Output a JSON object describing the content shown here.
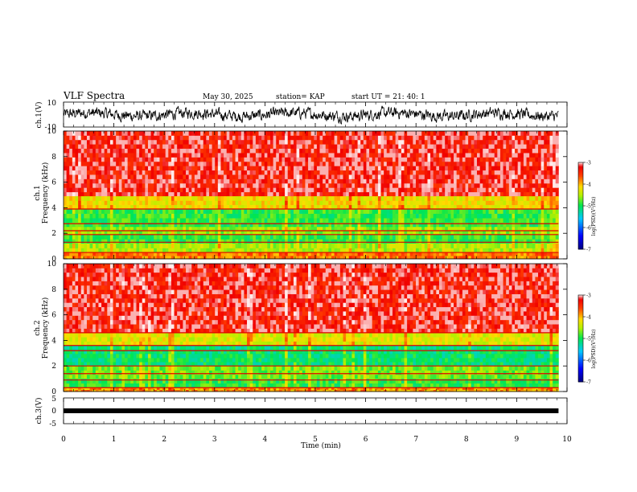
{
  "header": {
    "title": "VLF Spectra",
    "date": "May 30, 2025",
    "station": "station= KAP",
    "start_ut": "start  UT  =   21: 40: 1"
  },
  "chart_data": [
    {
      "type": "line",
      "panel": "ch1-waveform",
      "ylabel": "ch.1(V)",
      "ylim": [
        -10,
        10
      ],
      "yticks": [
        "10",
        "-10"
      ],
      "xlim": [
        0,
        10
      ],
      "description_values": "noisy waveform mostly between -5 and 5 V"
    },
    {
      "type": "heatmap",
      "panel": "ch1-spectrogram",
      "ylabel": "ch.1\nFrequency  (kHz)",
      "ylabel_lines": [
        "ch.1",
        "Frequency  (kHz)"
      ],
      "ylim": [
        0,
        10
      ],
      "yticks": [
        "0",
        "2",
        "4",
        "6",
        "8",
        "10"
      ],
      "xlim": [
        0,
        10
      ],
      "colorbar": {
        "label": "log(PSD)(V²/Hz)",
        "range": [
          -7,
          -3
        ],
        "ticks": [
          "-3",
          "-4",
          "-5",
          "-6",
          "-7"
        ]
      },
      "bands_khz": [
        {
          "from": 4.9,
          "to": 10,
          "level": -3.3
        },
        {
          "from": 3.9,
          "to": 4.9,
          "level": -4.2
        },
        {
          "from": 2.5,
          "to": 3.9,
          "level": -4.9
        },
        {
          "from": 1.9,
          "to": 2.5,
          "level": -4.6
        },
        {
          "from": 1.2,
          "to": 1.9,
          "level": -4.9
        },
        {
          "from": 0.5,
          "to": 1.2,
          "level": -4.5
        },
        {
          "from": 0,
          "to": 0.5,
          "level": -3.8
        }
      ],
      "lines_khz": [
        3.9,
        2.75,
        2.2,
        1.9,
        1.3,
        0.5
      ]
    },
    {
      "type": "heatmap",
      "panel": "ch2-spectrogram",
      "ylabel": "ch.2\nFrequency  (kHz)",
      "ylabel_lines": [
        "ch.2",
        "Frequency  (kHz)"
      ],
      "ylim": [
        0,
        10
      ],
      "yticks": [
        "0",
        "2",
        "4",
        "6",
        "8",
        "10"
      ],
      "xlim": [
        0,
        10
      ],
      "colorbar": {
        "label": "log(PSD)(V²/Hz)",
        "range": [
          -7,
          -3
        ],
        "ticks": [
          "-3",
          "-4",
          "-5",
          "-6",
          "-7"
        ]
      },
      "bands_khz": [
        {
          "from": 4.6,
          "to": 10,
          "level": -3.3
        },
        {
          "from": 3.6,
          "to": 4.6,
          "level": -4.3
        },
        {
          "from": 2.0,
          "to": 3.6,
          "level": -5.1
        },
        {
          "from": 1.0,
          "to": 2.0,
          "level": -4.7
        },
        {
          "from": 0.3,
          "to": 1.0,
          "level": -4.9
        },
        {
          "from": 0,
          "to": 0.3,
          "level": -3.9
        }
      ],
      "lines_khz": [
        4.6,
        3.6,
        3.2,
        2.0,
        1.4,
        0.9,
        0.3
      ]
    },
    {
      "type": "line",
      "panel": "ch3-waveform",
      "ylabel": "ch.3(V)",
      "ylim": [
        -5,
        5
      ],
      "yticks": [
        "5",
        "0",
        "-5"
      ],
      "xlim": [
        0,
        10
      ],
      "description_values": "near-constant trace at about -0.5 V"
    }
  ],
  "x_axis": {
    "label": "Time  (min)",
    "ticks": [
      "0",
      "1",
      "2",
      "3",
      "4",
      "5",
      "6",
      "7",
      "8",
      "9",
      "10"
    ],
    "range": [
      0,
      10
    ],
    "data_end": 9.83
  }
}
